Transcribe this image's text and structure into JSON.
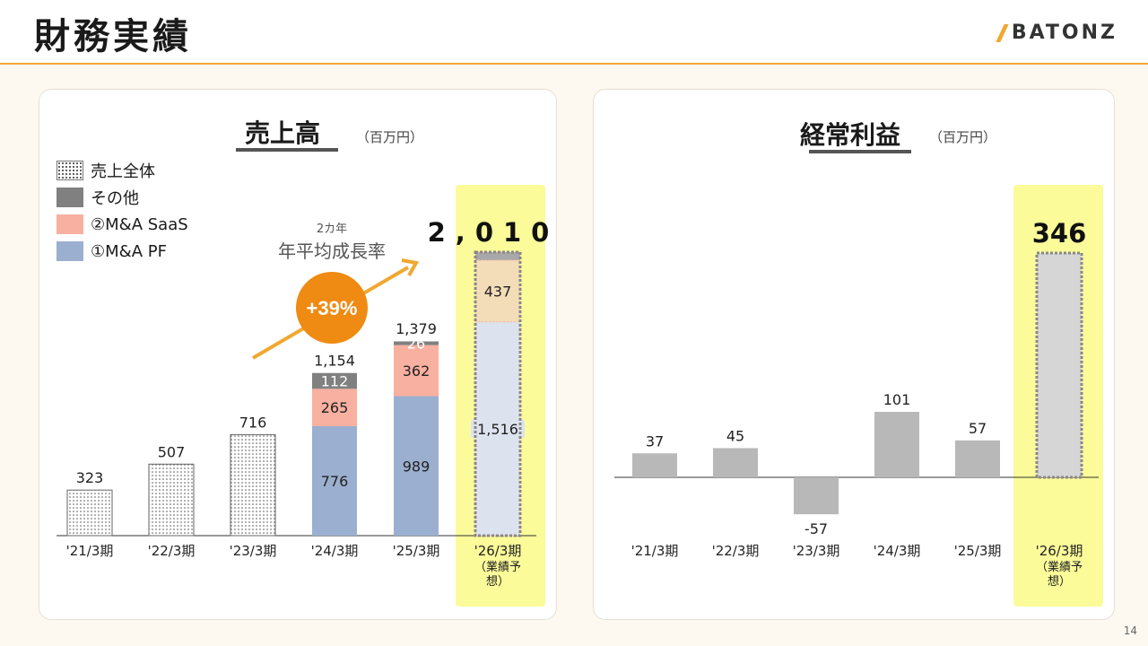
{
  "header": {
    "title": "財務実績",
    "logo_text": "BATONZ"
  },
  "page_number": "14",
  "colors": {
    "accent": "#f0a830",
    "highlight": "#fbfb9a",
    "mapf": "#9bafd0",
    "saas": "#f8b0a0",
    "other": "#808080",
    "profit_bar": "#b8b8b8",
    "growth_bubble": "#ef8a12"
  },
  "sales_chart": {
    "title": "売上高",
    "unit": "（百万円）",
    "legend": [
      {
        "label": "売上全体",
        "icon": "dotted-swatch"
      },
      {
        "label": "その他",
        "icon": "dark-gray-swatch"
      },
      {
        "label": "②M&A SaaS",
        "icon": "salmon-swatch"
      },
      {
        "label": "①M&A PF",
        "icon": "blue-swatch"
      }
    ],
    "growth": {
      "caption_line1": "2カ年",
      "caption_line2": "年平均成長率",
      "rate": "+39%"
    }
  },
  "profit_chart": {
    "title": "経常利益",
    "unit": "（百万円）"
  },
  "chart_data": [
    {
      "type": "bar",
      "title": "売上高",
      "unit": "百万円",
      "categories": [
        "'21/3期",
        "'22/3期",
        "'23/3期",
        "'24/3期",
        "'25/3期",
        "'26/3期（業績予想）"
      ],
      "totals": [
        323,
        507,
        716,
        1154,
        1379,
        2010
      ],
      "total_labels": [
        "323",
        "507",
        "716",
        "1,154",
        "1,379",
        "2,010"
      ],
      "series": [
        {
          "name": "①M&A PF",
          "values": [
            null,
            null,
            null,
            776,
            989,
            1516
          ],
          "labels": [
            "",
            "",
            "",
            "776",
            "989",
            "1,516"
          ]
        },
        {
          "name": "②M&A SaaS",
          "values": [
            null,
            null,
            null,
            265,
            362,
            437
          ],
          "labels": [
            "",
            "",
            "",
            "265",
            "362",
            "437"
          ]
        },
        {
          "name": "その他",
          "values": [
            null,
            null,
            null,
            112,
            26,
            57
          ],
          "labels": [
            "",
            "",
            "",
            "112",
            "26",
            ""
          ]
        }
      ],
      "forecast_index": 5
    },
    {
      "type": "bar",
      "title": "経常利益",
      "unit": "百万円",
      "categories": [
        "'21/3期",
        "'22/3期",
        "'23/3期",
        "'24/3期",
        "'25/3期",
        "'26/3期（業績予想）"
      ],
      "values": [
        37,
        45,
        -57,
        101,
        57,
        346
      ],
      "labels": [
        "37",
        "45",
        "-57",
        "101",
        "57",
        "346"
      ],
      "forecast_index": 5
    }
  ]
}
